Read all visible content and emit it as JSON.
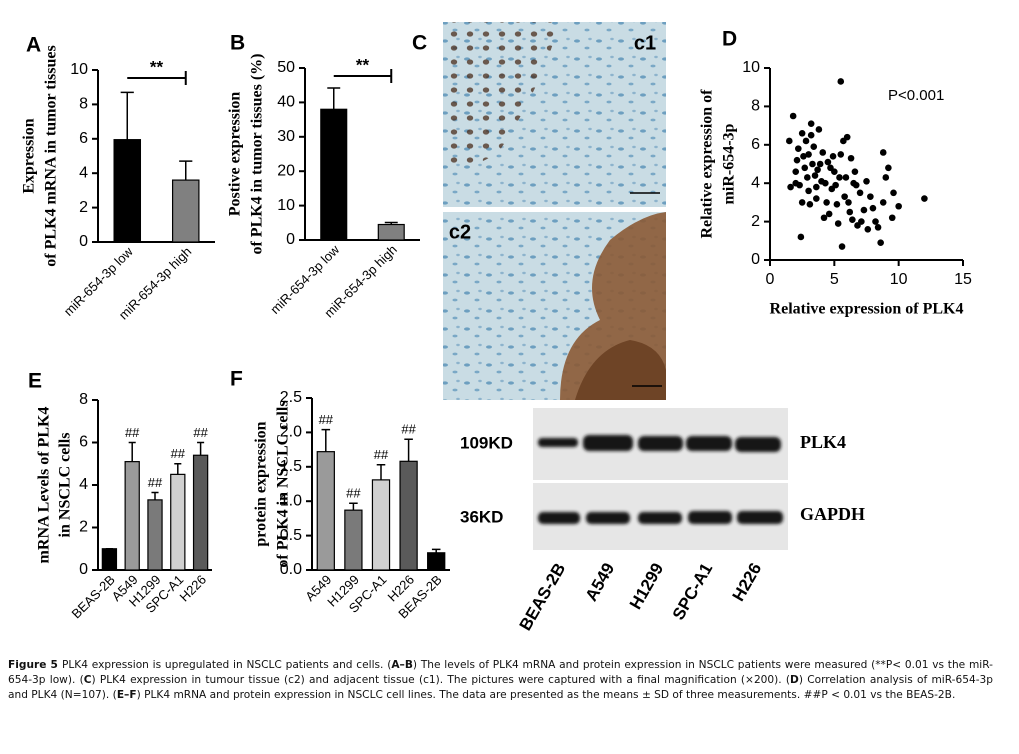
{
  "chart_data": [
    {
      "type": "bar",
      "panel": "A",
      "ylabel": [
        "Expression",
        "of PLK4 mRNA in tumor tissues"
      ],
      "categories": [
        "miR-654-3p low",
        "miR-654-3p high"
      ],
      "values": [
        5.95,
        3.6
      ],
      "errors": [
        2.75,
        1.1
      ],
      "colors": [
        "#000000",
        "#808080"
      ],
      "ylim": [
        0,
        10
      ],
      "yticks": [
        0,
        2,
        4,
        6,
        8,
        10
      ],
      "significance": "**"
    },
    {
      "type": "bar",
      "panel": "B",
      "ylabel": [
        "Postive expression",
        "of PLK4 in tumor tissues (%)"
      ],
      "categories": [
        "miR-654-3p low",
        "miR-654-3p high"
      ],
      "values": [
        38,
        4.5
      ],
      "errors": [
        6.2,
        0.6
      ],
      "colors": [
        "#000000",
        "#808080"
      ],
      "ylim": [
        0,
        50
      ],
      "yticks": [
        0,
        10,
        20,
        30,
        40,
        50
      ],
      "significance": "**"
    },
    {
      "type": "scatter",
      "panel": "D",
      "ylabel": [
        "Relative expression of",
        "miR-654-3p"
      ],
      "xlabel": "Relative expression of PLK4",
      "annotation": "P<0.001",
      "color": "#000000",
      "x": [
        1.5,
        1.8,
        2,
        2.2,
        2.5,
        2.7,
        3,
        3,
        3.2,
        3.5,
        1.6,
        2.1,
        2.4,
        2.8,
        3.1,
        3.4,
        3.6,
        3.8,
        4,
        4.2,
        4.5,
        4.8,
        5,
        5.2,
        5.5,
        5.8,
        6,
        6.2,
        6.5,
        6.8,
        7,
        7.3,
        7.6,
        8,
        8.4,
        8.8,
        9.2,
        9.5,
        10,
        12,
        2.3,
        2.9,
        3.3,
        3.7,
        4.1,
        4.4,
        4.6,
        4.9,
        5.1,
        5.3,
        5.6,
        5.9,
        6.1,
        6.4,
        6.7,
        7.1,
        7.5,
        7.8,
        8.2,
        8.6,
        9,
        2.6,
        3.9,
        4.3,
        5.4,
        5.7,
        6.3,
        3.2,
        2.0,
        4.7,
        5.5,
        6.6,
        2.5,
        3.6,
        8.8,
        9.6
      ],
      "y": [
        6.2,
        7.5,
        4,
        5.8,
        6.6,
        4.8,
        5.5,
        3.6,
        7.1,
        4.4,
        3.8,
        5.2,
        1.2,
        6.2,
        2.9,
        5.9,
        3.2,
        6.8,
        4.1,
        2.2,
        5.1,
        3.7,
        4.6,
        2.9,
        9.3,
        3.3,
        6.4,
        2.5,
        4.0,
        1.8,
        3.5,
        2.6,
        1.6,
        2.7,
        1.7,
        5.6,
        4.8,
        2.2,
        2.8,
        3.2,
        3.9,
        4.3,
        5.0,
        4.7,
        5.6,
        3.0,
        2.4,
        5.4,
        3.9,
        1.9,
        0.7,
        4.3,
        3.0,
        2.1,
        3.9,
        2.0,
        4.1,
        3.3,
        2.0,
        0.9,
        4.3,
        5.4,
        5.0,
        4.0,
        4.3,
        6.2,
        5.3,
        6.5,
        4.6,
        4.8,
        5.5,
        4.6,
        3.0,
        3.8,
        3.0,
        3.5
      ],
      "xlim": [
        0,
        15
      ],
      "xticks": [
        0,
        5,
        10,
        15
      ],
      "ylim": [
        0,
        10
      ],
      "yticks": [
        0,
        2,
        4,
        6,
        8,
        10
      ]
    },
    {
      "type": "bar",
      "panel": "E",
      "ylabel": [
        "mRNA Levels of PLK4",
        "in NSCLC cells"
      ],
      "categories": [
        "BEAS-2B",
        "A549",
        "H1299",
        "SPC-A1",
        "H226"
      ],
      "values": [
        1,
        5.1,
        3.3,
        4.5,
        5.4
      ],
      "errors": [
        0,
        0.9,
        0.35,
        0.5,
        0.6
      ],
      "colors": [
        "#000000",
        "#9a9a9a",
        "#7a7a7a",
        "#d0d0d0",
        "#5a5a5a"
      ],
      "ylim": [
        0,
        8
      ],
      "yticks": [
        0,
        2,
        4,
        6,
        8
      ],
      "annotations": [
        null,
        "##",
        "##",
        "##",
        "##"
      ]
    },
    {
      "type": "bar",
      "panel": "F",
      "ylabel": [
        "protein  expression",
        "of PLK4 in NSCLC cells"
      ],
      "categories": [
        "A549",
        "H1299",
        "SPC-A1",
        "H226",
        "BEAS-2B"
      ],
      "values": [
        1.72,
        0.87,
        1.31,
        1.58,
        0.25
      ],
      "errors": [
        0.32,
        0.1,
        0.22,
        0.32,
        0.05
      ],
      "colors": [
        "#9a9a9a",
        "#7a7a7a",
        "#d0d0d0",
        "#5a5a5a",
        "#000000"
      ],
      "ylim": [
        0,
        2.5
      ],
      "yticks": [
        {
          "value": 0,
          "label": "0.0"
        },
        0.5,
        {
          "value": 1,
          "label": "1.0"
        },
        1.5,
        {
          "value": 2,
          "label": "2.0"
        },
        2.5
      ],
      "annotations": [
        "##",
        "##",
        "##",
        "##",
        null
      ]
    }
  ],
  "images": {
    "panel": "C",
    "top": "c1",
    "bottom": "c2"
  },
  "blot": {
    "sizes": [
      "109KD",
      "36KD"
    ],
    "proteins": [
      "PLK4",
      "GAPDH"
    ],
    "lanes": [
      "BEAS-2B",
      "A549",
      "H1299",
      "SPC-A1",
      "H226"
    ]
  },
  "caption": [
    {
      "text": "Figure 5 ",
      "bold": true
    },
    {
      "text": "PLK4 expression is upregulated in NSCLC patients and cells. (",
      "bold": false
    },
    {
      "text": "A–B",
      "bold": true
    },
    {
      "text": ") The levels of PLK4 mRNA and protein expression in NSCLC patients were measured (**P< 0.01 vs the miR-654-3p low). (",
      "bold": false
    },
    {
      "text": "C",
      "bold": true
    },
    {
      "text": ") PLK4 expression in tumour tissue (c2) and adjacent tissue (c1). The pictures were captured with a final magnification (×200). (",
      "bold": false
    },
    {
      "text": "D",
      "bold": true
    },
    {
      "text": ") Correlation analysis of miR-654-3p and PLK4 (N=107). (",
      "bold": false
    },
    {
      "text": "E–F",
      "bold": true
    },
    {
      "text": ") PLK4 mRNA and protein expression in NSCLC cell lines. The data are presented as the means ± SD of three measurements. ##P < 0.01 vs the BEAS-2B.",
      "bold": false
    }
  ]
}
